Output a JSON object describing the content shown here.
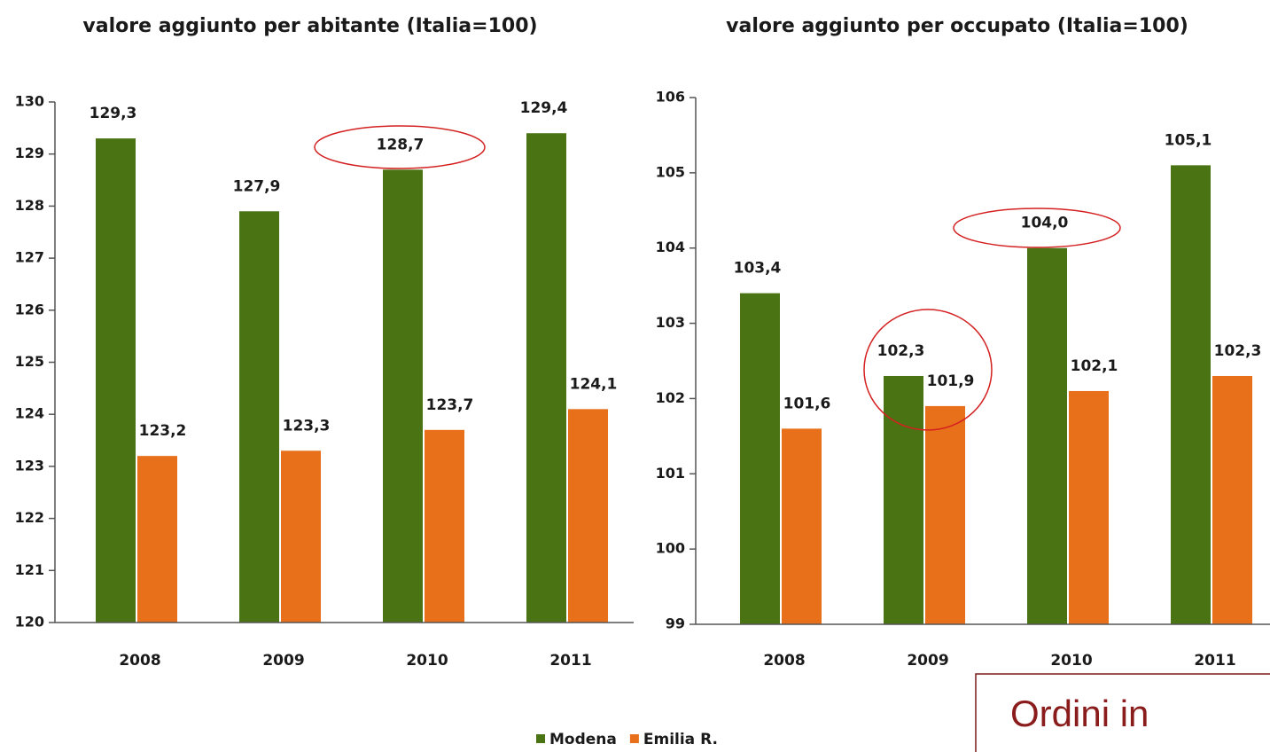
{
  "chart_data": [
    {
      "type": "bar",
      "title": "valore aggiunto per abitante (Italia=100)",
      "categories": [
        "2008",
        "2009",
        "2010",
        "2011"
      ],
      "series": [
        {
          "name": "Modena",
          "color": "#4a7314",
          "values": [
            129.3,
            127.9,
            128.7,
            129.4
          ],
          "value_labels": [
            "129,3",
            "127,9",
            "128,7",
            "129,4"
          ]
        },
        {
          "name": "Emilia R.",
          "color": "#e8701a",
          "values": [
            123.2,
            123.3,
            123.7,
            124.1
          ],
          "value_labels": [
            "123,2",
            "123,3",
            "123,7",
            "124,1"
          ]
        }
      ],
      "ylim": [
        120,
        130
      ],
      "yticks": [
        120,
        121,
        122,
        123,
        124,
        125,
        126,
        127,
        128,
        129,
        130
      ]
    },
    {
      "type": "bar",
      "title": "valore aggiunto per occupato (Italia=100)",
      "categories": [
        "2008",
        "2009",
        "2010",
        "2011"
      ],
      "series": [
        {
          "color": "#4a7314",
          "values": [
            103.4,
            102.3,
            104.0,
            105.1
          ],
          "value_labels": [
            "103,4",
            "102,3",
            "104,0",
            "105,1"
          ]
        },
        {
          "color": "#e8701a",
          "values": [
            101.6,
            101.9,
            102.1,
            102.3
          ],
          "value_labels": [
            "101,6",
            "101,9",
            "102,1",
            "102,3"
          ]
        }
      ],
      "ylim": [
        99,
        106
      ],
      "yticks": [
        99,
        100,
        101,
        102,
        103,
        104,
        105,
        106
      ]
    }
  ],
  "overlay_text": "Ordini in"
}
